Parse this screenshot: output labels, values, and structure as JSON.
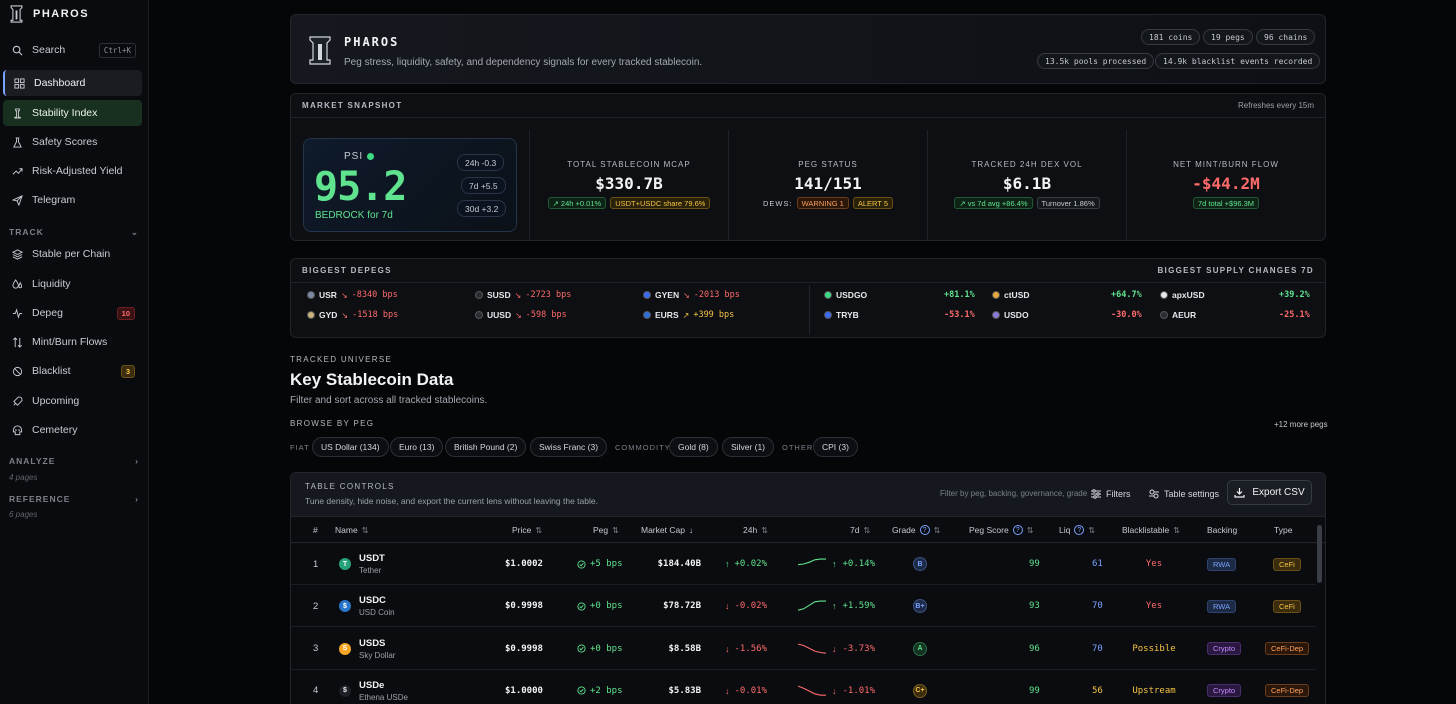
{
  "brand": {
    "name": "PHAROS"
  },
  "sidebar": {
    "search": {
      "label": "Search",
      "shortcut": "Ctrl+K"
    },
    "items": [
      {
        "label": "Dashboard"
      },
      {
        "label": "Stability Index"
      },
      {
        "label": "Safety Scores"
      },
      {
        "label": "Risk-Adjusted Yield"
      },
      {
        "label": "Telegram"
      }
    ],
    "track_label": "TRACK",
    "track_items": [
      {
        "label": "Stable per Chain"
      },
      {
        "label": "Liquidity"
      },
      {
        "label": "Depeg",
        "badge": "10"
      },
      {
        "label": "Mint/Burn Flows"
      },
      {
        "label": "Blacklist",
        "badge": "3"
      },
      {
        "label": "Upcoming"
      },
      {
        "label": "Cemetery"
      }
    ],
    "analyze": {
      "label": "ANALYZE",
      "sub": "4 pages"
    },
    "reference": {
      "label": "REFERENCE",
      "sub": "6 pages"
    }
  },
  "hero": {
    "title": "PHAROS",
    "subtitle": "Peg stress, liquidity, safety, and dependency signals for every tracked stablecoin.",
    "pills": [
      "181 coins",
      "19 pegs",
      "96 chains",
      "13.5k pools processed",
      "14.9k blacklist events recorded"
    ]
  },
  "snapshot": {
    "title": "MARKET SNAPSHOT",
    "refresh": "Refreshes every 15m",
    "psi": {
      "label": "PSI",
      "value": "95.2",
      "state": "BEDROCK for 7d",
      "chips": [
        "24h -0.3",
        "7d +5.5",
        "30d +3.2"
      ]
    },
    "metrics": [
      {
        "label": "TOTAL STABLECOIN MCAP",
        "value": "$330.7B",
        "chips": [
          "↗ 24h +0.01%",
          "USDT+USDC share 79.6%"
        ]
      },
      {
        "label": "PEG STATUS",
        "value": "141/151",
        "dews": "DEWS:",
        "chips": [
          "WARNING 1",
          "ALERT 5"
        ]
      },
      {
        "label": "TRACKED 24H DEX VOL",
        "value": "$6.1B",
        "chips": [
          "↗ vs 7d avg +86.4%",
          "Turnover 1.86%"
        ]
      },
      {
        "label": "NET MINT/BURN FLOW",
        "value": "-$44.2M",
        "chips": [
          "7d total +$96.3M"
        ]
      }
    ]
  },
  "depegs": {
    "title": "BIGGEST DEPEGS",
    "supply_title": "BIGGEST SUPPLY CHANGES 7D",
    "items": [
      {
        "name": "USR",
        "value": "-8340 bps",
        "color": "#7a8aa8"
      },
      {
        "name": "SUSD",
        "value": "-2723 bps",
        "color": "#2a2d33"
      },
      {
        "name": "GYEN",
        "value": "-2013 bps",
        "color": "#3b6cf0"
      },
      {
        "name": "GYD",
        "value": "-1518 bps",
        "color": "#c8b27a"
      },
      {
        "name": "UUSD",
        "value": "-598 bps",
        "color": "#2a2d33"
      },
      {
        "name": "EURS",
        "value": "+399 bps",
        "color": "#2f6fd8"
      }
    ],
    "supply": [
      {
        "name": "USDGO",
        "value": "+81.1%",
        "color": "#3ddc84"
      },
      {
        "name": "ctUSD",
        "value": "+64.7%",
        "color": "#e8a93b"
      },
      {
        "name": "apxUSD",
        "value": "+39.2%",
        "color": "#e6e8ec"
      },
      {
        "name": "TRYB",
        "value": "-53.1%",
        "color": "#3b6cf0"
      },
      {
        "name": "USDO",
        "value": "-30.0%",
        "color": "#8a7ad8"
      },
      {
        "name": "AEUR",
        "value": "-25.1%",
        "color": "#2a2d33"
      }
    ]
  },
  "universe": {
    "kicker": "TRACKED UNIVERSE",
    "title": "Key Stablecoin Data",
    "subtitle": "Filter and sort across all tracked stablecoins.",
    "browse": "BROWSE BY PEG",
    "more": "+12 more pegs",
    "groups": {
      "fiat": "FIAT",
      "commodity": "COMMODITY",
      "other": "OTHER"
    },
    "pegs": [
      "US Dollar (134)",
      "Euro (13)",
      "British Pound (2)",
      "Swiss Franc (3)",
      "Gold (8)",
      "Silver (1)",
      "CPI (3)"
    ]
  },
  "table": {
    "controls_title": "TABLE CONTROLS",
    "controls_sub": "Tune density, hide noise, and export the current lens without leaving the table.",
    "filter_hint": "Filter by peg, backing, governance, grade",
    "filters": "Filters",
    "settings": "Table settings",
    "export": "Export CSV",
    "headers": [
      "#",
      "Name",
      "Price",
      "Peg",
      "Market Cap",
      "24h",
      "7d",
      "Grade",
      "Peg Score",
      "Liq",
      "Blacklistable",
      "Backing",
      "Type"
    ],
    "rows": [
      {
        "rank": "1",
        "symbol": "USDT",
        "name": "Tether",
        "price": "$1.0002",
        "peg": "+5 bps",
        "mcap": "$184.40B",
        "d24": "+0.02%",
        "d7": "+0.14%",
        "grade": "B",
        "score": "99",
        "liq": "61",
        "black": "Yes",
        "backing": "RWA",
        "type": "CeFi",
        "trend": [
          0.45,
          0.5,
          0.62,
          0.8,
          0.85,
          0.85
        ]
      },
      {
        "rank": "2",
        "symbol": "USDC",
        "name": "USD Coin",
        "price": "$0.9998",
        "peg": "+0 bps",
        "mcap": "$78.72B",
        "d24": "-0.02%",
        "d7": "+1.59%",
        "grade": "B+",
        "score": "93",
        "liq": "70",
        "black": "Yes",
        "backing": "RWA",
        "type": "CeFi",
        "trend": [
          0.2,
          0.3,
          0.55,
          0.8,
          0.85,
          0.85
        ]
      },
      {
        "rank": "3",
        "symbol": "USDS",
        "name": "Sky Dollar",
        "price": "$0.9998",
        "peg": "+0 bps",
        "mcap": "$8.58B",
        "d24": "-1.56%",
        "d7": "-3.73%",
        "grade": "A",
        "score": "96",
        "liq": "70",
        "black": "Possible",
        "backing": "Crypto",
        "type": "CeFi-Dep",
        "trend": [
          0.85,
          0.75,
          0.55,
          0.35,
          0.25,
          0.2
        ]
      },
      {
        "rank": "4",
        "symbol": "USDe",
        "name": "Ethena USDe",
        "price": "$1.0000",
        "peg": "+2 bps",
        "mcap": "$5.83B",
        "d24": "-0.01%",
        "d7": "-1.01%",
        "grade": "C+",
        "score": "99",
        "liq": "56",
        "black": "Upstream",
        "backing": "Crypto",
        "type": "CeFi-Dep",
        "trend": [
          0.85,
          0.7,
          0.5,
          0.3,
          0.2,
          0.2
        ]
      }
    ]
  }
}
